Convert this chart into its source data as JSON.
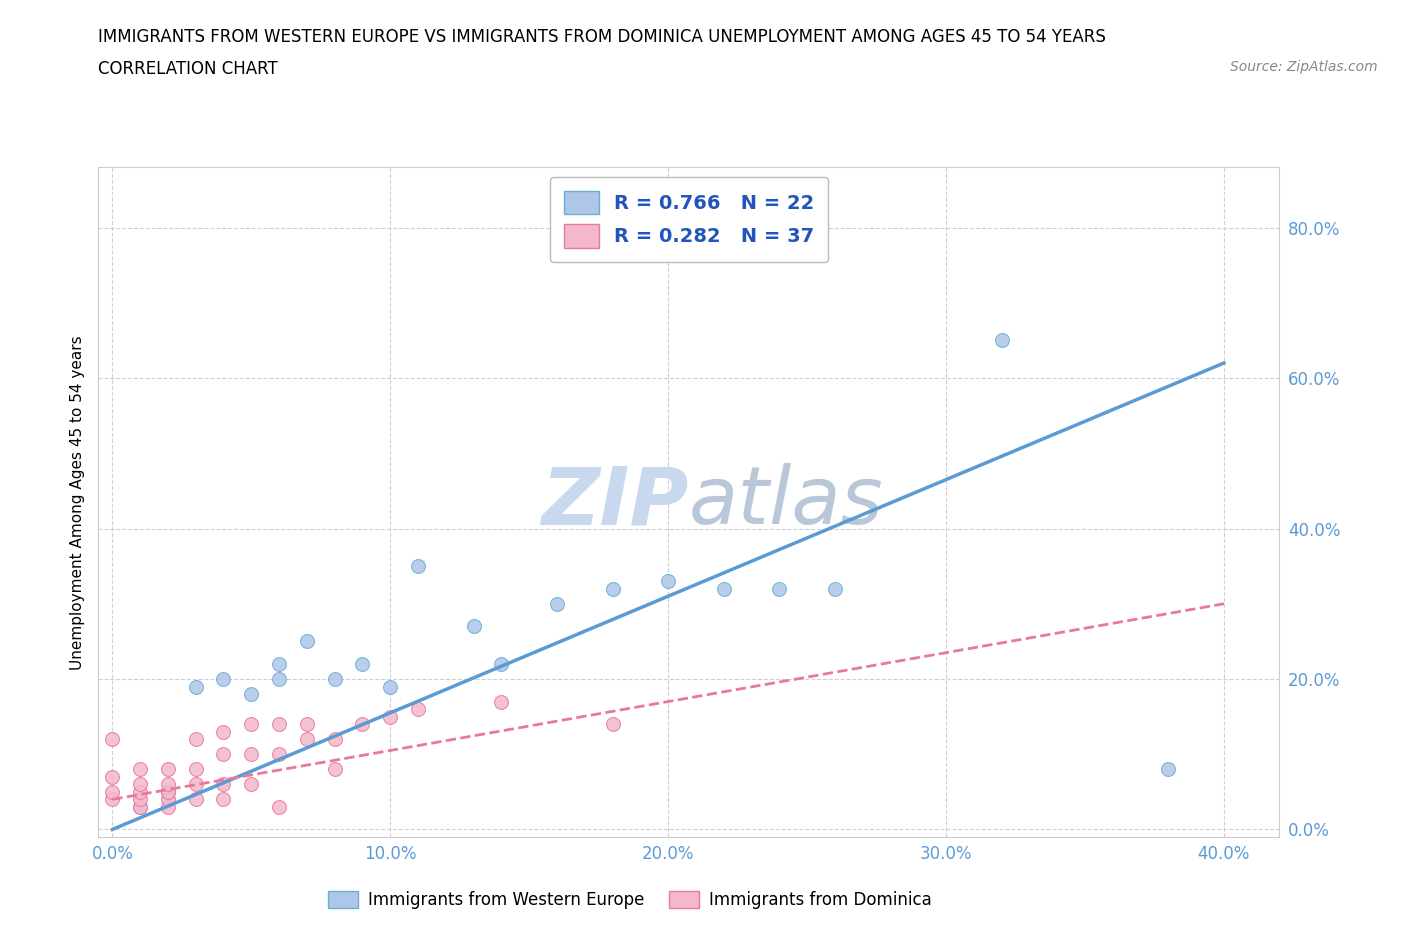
{
  "title_line1": "IMMIGRANTS FROM WESTERN EUROPE VS IMMIGRANTS FROM DOMINICA UNEMPLOYMENT AMONG AGES 45 TO 54 YEARS",
  "title_line2": "CORRELATION CHART",
  "source_text": "Source: ZipAtlas.com",
  "ylabel": "Unemployment Among Ages 45 to 54 years",
  "xlim": [
    -0.005,
    0.42
  ],
  "ylim": [
    -0.01,
    0.88
  ],
  "xtick_vals": [
    0.0,
    0.1,
    0.2,
    0.3,
    0.4
  ],
  "xtick_labels": [
    "0.0%",
    "10.0%",
    "20.0%",
    "30.0%",
    "40.0%"
  ],
  "ytick_vals": [
    0.0,
    0.2,
    0.4,
    0.6,
    0.8
  ],
  "ytick_labels": [
    "0.0%",
    "20.0%",
    "40.0%",
    "60.0%",
    "80.0%"
  ],
  "blue_R": 0.766,
  "blue_N": 22,
  "pink_R": 0.282,
  "pink_N": 37,
  "blue_color": "#aec6e8",
  "pink_color": "#f4b8cb",
  "blue_edge_color": "#6aaed6",
  "pink_edge_color": "#e87a9a",
  "blue_line_color": "#5b9bd5",
  "pink_line_color": "#e8799a",
  "grid_color": "#d0d0d0",
  "watermark_color": "#c8d8ee",
  "legend_text_color": "#2255bb",
  "blue_scatter_x": [
    0.01,
    0.02,
    0.03,
    0.04,
    0.05,
    0.06,
    0.06,
    0.07,
    0.08,
    0.09,
    0.1,
    0.11,
    0.13,
    0.14,
    0.16,
    0.18,
    0.2,
    0.22,
    0.24,
    0.26,
    0.32,
    0.38
  ],
  "blue_scatter_y": [
    0.03,
    0.05,
    0.19,
    0.2,
    0.18,
    0.2,
    0.22,
    0.25,
    0.2,
    0.22,
    0.19,
    0.35,
    0.27,
    0.22,
    0.3,
    0.32,
    0.33,
    0.32,
    0.32,
    0.32,
    0.65,
    0.08
  ],
  "pink_scatter_x": [
    0.0,
    0.0,
    0.0,
    0.0,
    0.01,
    0.01,
    0.01,
    0.01,
    0.01,
    0.02,
    0.02,
    0.02,
    0.02,
    0.02,
    0.03,
    0.03,
    0.03,
    0.03,
    0.04,
    0.04,
    0.04,
    0.04,
    0.05,
    0.05,
    0.05,
    0.06,
    0.06,
    0.06,
    0.07,
    0.07,
    0.08,
    0.08,
    0.09,
    0.1,
    0.11,
    0.14,
    0.18
  ],
  "pink_scatter_y": [
    0.04,
    0.05,
    0.07,
    0.12,
    0.03,
    0.04,
    0.05,
    0.06,
    0.08,
    0.03,
    0.04,
    0.05,
    0.06,
    0.08,
    0.04,
    0.06,
    0.08,
    0.12,
    0.04,
    0.06,
    0.1,
    0.13,
    0.06,
    0.1,
    0.14,
    0.03,
    0.1,
    0.14,
    0.12,
    0.14,
    0.08,
    0.12,
    0.14,
    0.15,
    0.16,
    0.17,
    0.14
  ],
  "blue_line_x": [
    0.0,
    0.4
  ],
  "blue_line_y": [
    0.0,
    0.62
  ],
  "pink_line_x": [
    0.0,
    0.4
  ],
  "pink_line_y": [
    0.04,
    0.3
  ],
  "blue_legend_label": "Immigrants from Western Europe",
  "pink_legend_label": "Immigrants from Dominica"
}
